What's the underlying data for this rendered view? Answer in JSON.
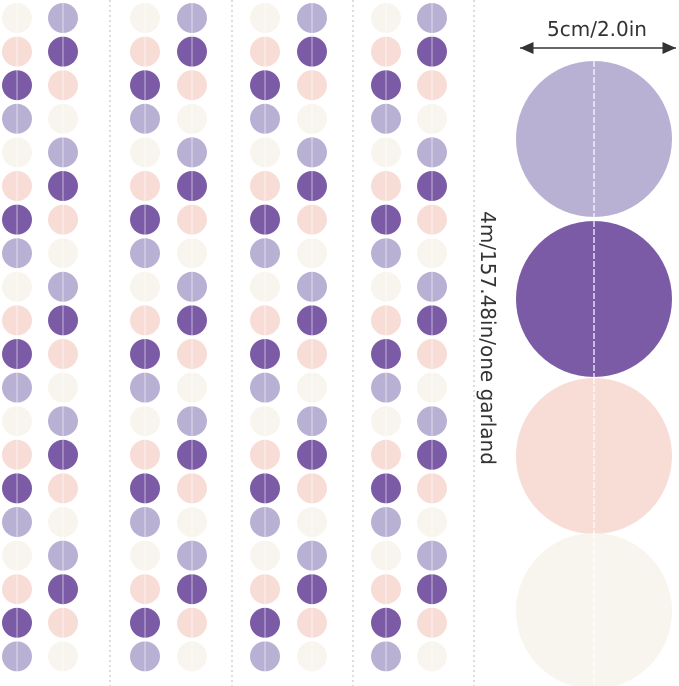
{
  "labels": {
    "width": "5cm/2.0in",
    "length": "4m/157.48in/one garland"
  }
}
